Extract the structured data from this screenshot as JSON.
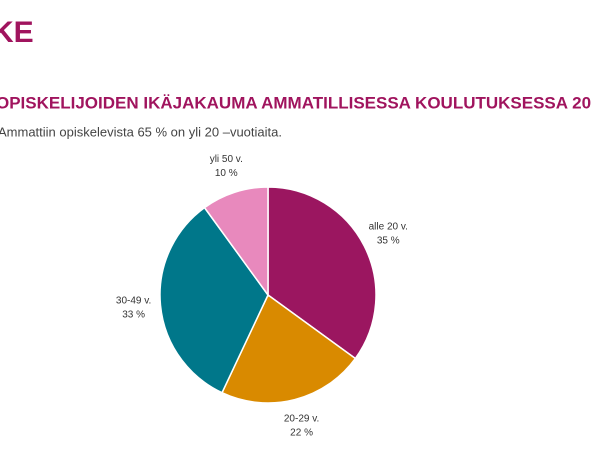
{
  "logo": "KE",
  "chart_data": {
    "type": "pie",
    "title": "OPISKELIJOIDEN IKÄJAKAUMA AMMATILLISESSA KOULUTUKSESSA 20",
    "subtitle": "Ammattiin opiskelevista 65 % on yli 20 –vuotiaita.",
    "categories": [
      "alle 20 v.",
      "20-29 v.",
      "30-49 v.",
      "yli 50 v."
    ],
    "values": [
      35,
      22,
      33,
      10
    ],
    "value_labels": [
      "35 %",
      "22 %",
      "33 %",
      "10 %"
    ],
    "colors": [
      "#9b1660",
      "#d98a00",
      "#00778a",
      "#e889bd"
    ]
  }
}
